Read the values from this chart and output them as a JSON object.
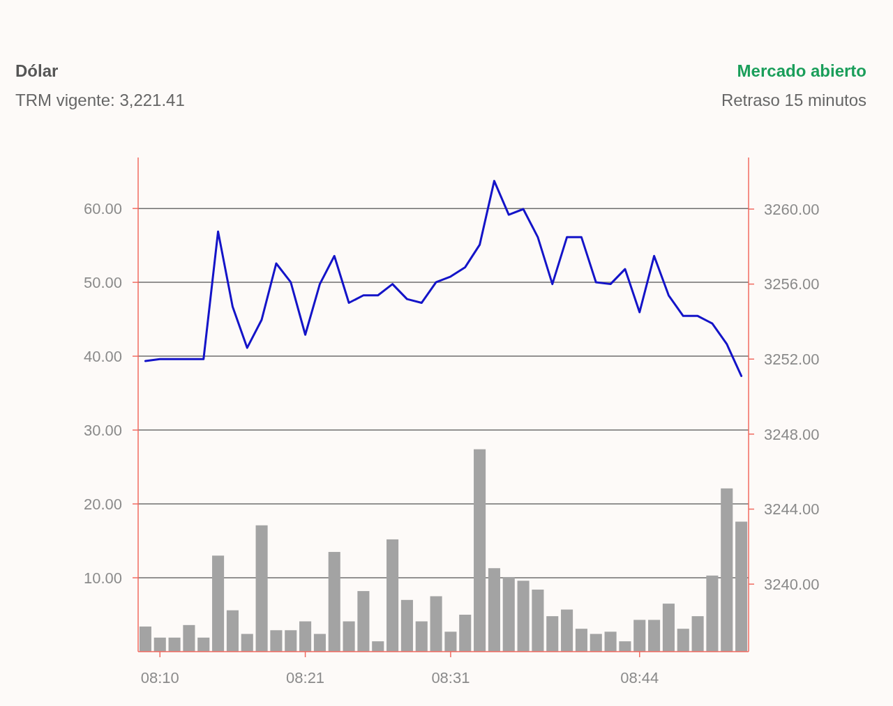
{
  "chart_data": {
    "type": "bar",
    "title": "Dólar",
    "subtitle": "TRM vigente: 3,221.41",
    "annotations": [
      "Mercado abierto",
      "Retraso 15 minutos"
    ],
    "categories": [
      null,
      "08:10",
      null,
      null,
      null,
      null,
      null,
      null,
      null,
      null,
      null,
      "08:21",
      null,
      null,
      null,
      null,
      null,
      null,
      null,
      null,
      null,
      "08:31",
      null,
      null,
      null,
      null,
      null,
      null,
      null,
      null,
      null,
      null,
      null,
      null,
      "08:44",
      null,
      null,
      null,
      null,
      null,
      null,
      null
    ],
    "series": [
      {
        "color": "#a3a3a3",
        "values": [
          3.4,
          1.9,
          1.9,
          3.6,
          1.9,
          13.0,
          5.6,
          2.4,
          17.1,
          2.9,
          2.9,
          4.1,
          2.4,
          13.5,
          4.1,
          8.2,
          1.4,
          15.2,
          7.0,
          4.1,
          7.5,
          2.7,
          5.0,
          27.4,
          11.3,
          10.1,
          9.6,
          8.4,
          4.8,
          5.7,
          3.1,
          2.4,
          2.7,
          1.4,
          4.3,
          4.3,
          6.5,
          3.1,
          4.8,
          10.3,
          22.1,
          17.6
        ]
      },
      {
        "type": "line",
        "axis": "y2",
        "color": "#1414c8",
        "values": [
          3251.9,
          3252.0,
          3252.0,
          3252.0,
          3252.0,
          3258.8,
          3254.8,
          3252.6,
          3254.1,
          3257.1,
          3256.1,
          3253.3,
          3256.0,
          3257.5,
          3255.0,
          3255.4,
          3255.4,
          3256.0,
          3255.2,
          3255.0,
          3256.1,
          3256.4,
          3256.9,
          3258.1,
          3261.5,
          3259.7,
          3260.0,
          3258.5,
          3256.0,
          3258.5,
          3258.5,
          3256.1,
          3256.0,
          3256.8,
          3254.5,
          3257.5,
          3255.4,
          3254.3,
          3254.3,
          3253.9,
          3252.8,
          3251.1
        ]
      }
    ],
    "ylim": [
      0,
      66.9
    ],
    "yticks": [
      {
        "value": 10,
        "label": "10.00"
      },
      {
        "value": 20,
        "label": "20.00"
      },
      {
        "value": 30,
        "label": "30.00"
      },
      {
        "value": 40,
        "label": "40.00"
      },
      {
        "value": 50,
        "label": "50.00"
      },
      {
        "value": 60,
        "label": "60.00"
      }
    ],
    "y2lim": [
      3236.4,
      3262.75
    ],
    "y2ticks": [
      {
        "value": 3240,
        "label": "3240.00"
      },
      {
        "value": 3244,
        "label": "3244.00"
      },
      {
        "value": 3248,
        "label": "3248.00"
      },
      {
        "value": 3252,
        "label": "3252.00"
      },
      {
        "value": 3256,
        "label": "3256.00"
      },
      {
        "value": 3260,
        "label": "3260.00"
      }
    ],
    "grid": "y"
  }
}
